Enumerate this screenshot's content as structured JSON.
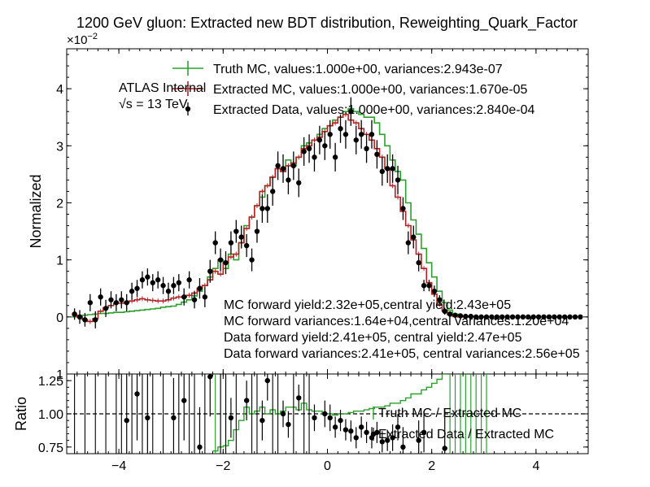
{
  "chart_data": [
    {
      "type": "line",
      "title": "1200 GeV gluon: Extracted new BDT distribution, Reweighting_Quark_Factor",
      "ylabel": "Normalized",
      "y_exponent_label": "×10",
      "y_exponent_power": "−2",
      "xlim": [
        -5,
        5
      ],
      "ylim": [
        -1,
        4.7
      ],
      "y_ticks": [
        -1,
        0,
        1,
        2,
        3,
        4
      ],
      "y_tick_labels": [
        "1",
        "0",
        "1",
        "2",
        "3",
        "4"
      ],
      "grid": false,
      "legend_placement": "top",
      "colors": {
        "truth": "#2ca02c",
        "extracted_mc": "#b22222",
        "data": "#000000"
      },
      "atlas_label": "ATLAS",
      "atlas_sublabel": "Internal",
      "energy_label": "√s =  13 TeV",
      "annotations": [
        "MC forward yield:2.32e+05,central yield:2.43e+05",
        "MC forward variances:1.64e+04,central variances:1.20e+04",
        "Data forward yield:2.41e+05, central yield:2.47e+05",
        "Data forward variances:2.41e+05, central variances:2.56e+05"
      ],
      "bin_edges": [
        -4.9,
        -4.8,
        -4.7,
        -4.6,
        -4.5,
        -4.4,
        -4.3,
        -4.2,
        -4.1,
        -4.0,
        -3.9,
        -3.8,
        -3.7,
        -3.6,
        -3.5,
        -3.4,
        -3.3,
        -3.2,
        -3.1,
        -3.0,
        -2.9,
        -2.8,
        -2.7,
        -2.6,
        -2.5,
        -2.4,
        -2.3,
        -2.2,
        -2.1,
        -2.0,
        -1.9,
        -1.8,
        -1.7,
        -1.6,
        -1.5,
        -1.4,
        -1.3,
        -1.2,
        -1.1,
        -1.0,
        -0.9,
        -0.8,
        -0.7,
        -0.6,
        -0.5,
        -0.4,
        -0.3,
        -0.2,
        -0.1,
        0.0,
        0.1,
        0.2,
        0.3,
        0.4,
        0.5,
        0.6,
        0.7,
        0.8,
        0.9,
        1.0,
        1.1,
        1.2,
        1.3,
        1.4,
        1.5,
        1.6,
        1.7,
        1.8,
        1.9,
        2.0,
        2.1,
        2.2,
        2.3,
        2.4,
        2.5,
        2.6,
        2.7,
        2.8,
        2.9,
        3.0,
        3.1
      ],
      "series": [
        {
          "name": "Truth MC, values:1.000e+00, variances:2.943e-07",
          "style": "step",
          "values": [
            0.0,
            0.02,
            0.03,
            0.04,
            0.05,
            0.06,
            0.06,
            0.07,
            0.08,
            0.08,
            0.09,
            0.1,
            0.11,
            0.12,
            0.13,
            0.14,
            0.15,
            0.17,
            0.18,
            0.19,
            0.22,
            0.26,
            0.3,
            0.37,
            0.45,
            0.55,
            0.7,
            0.85,
            1.0,
            0.85,
            1.1,
            1.0,
            1.3,
            1.6,
            1.75,
            1.95,
            2.1,
            2.3,
            2.45,
            2.6,
            2.6,
            2.75,
            2.65,
            2.8,
            3.0,
            3.05,
            3.1,
            3.2,
            3.3,
            3.35,
            3.45,
            3.5,
            3.6,
            3.65,
            3.6,
            3.55,
            3.5,
            3.5,
            3.4,
            3.2,
            3.0,
            2.75,
            2.55,
            2.4,
            2.0,
            1.7,
            1.45,
            1.2,
            0.95,
            0.7,
            0.45,
            0.25,
            0.12,
            0.05,
            0.02,
            0.01,
            0.0,
            0.0,
            0.0,
            0.0
          ]
        },
        {
          "name": "Extracted MC, values:1.000e+00, variances:1.670e-05",
          "style": "step",
          "values": [
            0.03,
            0.0,
            -0.05,
            -0.08,
            -0.03,
            0.1,
            0.16,
            0.2,
            0.24,
            0.24,
            0.26,
            0.28,
            0.3,
            0.32,
            0.3,
            0.29,
            0.28,
            0.28,
            0.3,
            0.33,
            0.35,
            0.35,
            0.38,
            0.42,
            0.5,
            0.55,
            0.65,
            0.8,
            0.75,
            0.95,
            1.05,
            1.1,
            1.3,
            1.55,
            1.75,
            1.95,
            2.2,
            2.3,
            2.45,
            2.6,
            2.55,
            2.65,
            2.7,
            2.8,
            2.95,
            3.0,
            3.1,
            3.15,
            3.25,
            3.35,
            3.4,
            3.5,
            3.55,
            3.45,
            3.4,
            3.3,
            3.2,
            3.1,
            2.95,
            2.8,
            2.6,
            2.3,
            2.1,
            1.85,
            1.6,
            1.35,
            1.1,
            0.85,
            0.6,
            0.4,
            0.22,
            0.1,
            0.04,
            0.01,
            0.0,
            0.0,
            0.0,
            0.0,
            0.0,
            0.0
          ]
        },
        {
          "name": "Extracted Data, values:1.000e+00, variances:2.840e-04",
          "style": "errorbar",
          "x": [
            -4.85,
            -4.75,
            -4.65,
            -4.55,
            -4.45,
            -4.35,
            -4.25,
            -4.15,
            -4.05,
            -3.95,
            -3.85,
            -3.75,
            -3.65,
            -3.55,
            -3.45,
            -3.35,
            -3.25,
            -3.15,
            -3.05,
            -2.95,
            -2.85,
            -2.75,
            -2.65,
            -2.55,
            -2.45,
            -2.35,
            -2.25,
            -2.15,
            -2.05,
            -1.95,
            -1.85,
            -1.75,
            -1.65,
            -1.55,
            -1.45,
            -1.35,
            -1.25,
            -1.15,
            -1.05,
            -0.95,
            -0.85,
            -0.75,
            -0.65,
            -0.55,
            -0.45,
            -0.35,
            -0.25,
            -0.15,
            -0.05,
            0.05,
            0.15,
            0.25,
            0.35,
            0.45,
            0.55,
            0.65,
            0.75,
            0.85,
            0.95,
            1.05,
            1.15,
            1.25,
            1.35,
            1.45,
            1.55,
            1.65,
            1.75,
            1.85,
            1.95,
            2.05,
            2.15,
            2.25,
            2.35,
            2.45,
            2.55,
            2.65,
            2.75,
            2.85,
            2.95,
            3.05,
            3.15,
            3.25,
            3.35,
            3.45,
            3.55,
            3.65,
            3.75,
            3.85,
            3.95,
            4.05,
            4.15,
            4.25,
            4.35,
            4.45,
            4.55,
            4.65,
            4.75,
            4.85
          ],
          "y": [
            0.05,
            0.0,
            -0.05,
            0.25,
            -0.05,
            0.35,
            0.15,
            0.3,
            0.25,
            0.3,
            0.25,
            0.45,
            0.5,
            0.65,
            0.7,
            0.6,
            0.65,
            0.55,
            0.45,
            0.55,
            0.6,
            0.35,
            0.65,
            0.3,
            0.5,
            0.35,
            0.8,
            1.3,
            1.0,
            0.95,
            1.3,
            1.5,
            1.4,
            1.25,
            1.0,
            1.5,
            1.9,
            1.9,
            2.2,
            2.65,
            2.6,
            2.4,
            2.65,
            2.35,
            2.9,
            2.95,
            2.8,
            3.1,
            3.0,
            3.2,
            2.8,
            3.3,
            3.2,
            3.6,
            3.1,
            3.2,
            2.95,
            3.2,
            2.85,
            2.55,
            2.6,
            2.6,
            2.4,
            1.9,
            1.3,
            1.4,
            0.95,
            0.55,
            0.55,
            0.45,
            0.3,
            0.1,
            0.05,
            0.03,
            0.02,
            0.01,
            0.01,
            0.0,
            0.0,
            0.0,
            0.0,
            0.0,
            0.0,
            0.0,
            0.0,
            0.0,
            0.0,
            0.0,
            0.0,
            0.0,
            0.0,
            0.0,
            0.0,
            0.0,
            0.0,
            0.0,
            0.0,
            0.0
          ],
          "yerr": [
            0.1,
            0.12,
            0.12,
            0.15,
            0.15,
            0.15,
            0.15,
            0.15,
            0.15,
            0.15,
            0.15,
            0.15,
            0.15,
            0.15,
            0.15,
            0.15,
            0.15,
            0.15,
            0.15,
            0.15,
            0.15,
            0.15,
            0.15,
            0.15,
            0.18,
            0.18,
            0.2,
            0.2,
            0.2,
            0.2,
            0.2,
            0.2,
            0.2,
            0.2,
            0.2,
            0.2,
            0.25,
            0.25,
            0.25,
            0.25,
            0.25,
            0.25,
            0.25,
            0.25,
            0.25,
            0.25,
            0.25,
            0.25,
            0.25,
            0.25,
            0.25,
            0.25,
            0.25,
            0.25,
            0.25,
            0.25,
            0.25,
            0.25,
            0.25,
            0.25,
            0.25,
            0.25,
            0.25,
            0.2,
            0.2,
            0.2,
            0.15,
            0.1,
            0.1,
            0.1,
            0.08,
            0.06,
            0.05,
            0.04,
            0.03,
            0.03,
            0.03,
            0.03,
            0.03,
            0.03,
            0.03,
            0.03,
            0.03,
            0.03,
            0.03,
            0.03,
            0.03,
            0.03,
            0.03,
            0.03,
            0.03,
            0.03,
            0.03,
            0.03,
            0.03,
            0.03,
            0.03,
            0.03
          ]
        }
      ]
    },
    {
      "type": "line",
      "xlabel": "",
      "ylabel": "Ratio",
      "xlim": [
        -5,
        5
      ],
      "ylim": [
        0.7,
        1.3
      ],
      "x_ticks": [
        -4,
        -2,
        0,
        2,
        4
      ],
      "x_tick_labels": [
        "−4",
        "−2",
        "0",
        "2",
        "4"
      ],
      "y_ticks": [
        0.75,
        1.0,
        1.25
      ],
      "y_tick_labels": [
        "0.75",
        "1.00",
        "1.25"
      ],
      "reference_line": 1.0,
      "legend_placement": "right",
      "series": [
        {
          "name": "Truth MC / Extracted MC",
          "style": "step",
          "bin_edges": [
            -2.2,
            -2.1,
            -2.0,
            -1.9,
            -1.8,
            -1.7,
            -1.6,
            -1.5,
            -1.4,
            -1.3,
            -1.2,
            -1.1,
            -1.0,
            -0.9,
            -0.8,
            -0.7,
            -0.6,
            -0.5,
            -0.4,
            -0.3,
            -0.2,
            -0.1,
            0.0,
            0.1,
            0.2,
            0.3,
            0.4,
            0.5,
            0.6,
            0.7,
            0.8,
            0.9,
            1.0,
            1.1,
            1.2,
            1.3,
            1.4,
            1.5,
            1.6,
            1.7,
            1.8,
            1.9,
            2.0,
            2.1,
            2.2,
            2.3
          ],
          "values": [
            0.72,
            0.75,
            0.76,
            0.8,
            0.88,
            0.95,
            1.05,
            1.0,
            1.02,
            1.05,
            1.0,
            1.03,
            1.0,
            1.02,
            1.05,
            1.05,
            1.03,
            1.08,
            1.03,
            1.02,
            1.02,
            1.0,
            1.0,
            0.99,
            1.0,
            1.0,
            1.01,
            1.02,
            1.02,
            1.03,
            1.04,
            1.05,
            1.05,
            1.06,
            1.08,
            1.08,
            1.1,
            1.12,
            1.15,
            1.15,
            1.18,
            1.2,
            1.23,
            1.26,
            1.3
          ]
        },
        {
          "name": "Extracted Data / Extracted MC",
          "style": "errorbar",
          "x": [
            -3.85,
            -3.65,
            -3.45,
            -2.95,
            -2.75,
            -2.45,
            -2.25,
            -1.85,
            -1.55,
            -1.25,
            -1.15,
            -0.85,
            -0.75,
            -0.55,
            -0.25,
            -0.05,
            0.05,
            0.15,
            0.25,
            0.35,
            0.45,
            0.55,
            0.65,
            0.75,
            0.85,
            0.95,
            1.05,
            1.15,
            1.25,
            1.35,
            1.45,
            1.75,
            1.85,
            2.25
          ],
          "y": [
            0.95,
            1.15,
            0.97,
            0.97,
            1.1,
            0.75,
            1.28,
            0.97,
            1.1,
            0.95,
            1.25,
            1.0,
            0.92,
            1.12,
            0.97,
            1.0,
            0.97,
            0.9,
            0.95,
            0.88,
            0.87,
            0.82,
            0.9,
            0.86,
            0.82,
            0.86,
            0.79,
            0.8,
            0.82,
            0.9,
            0.75,
            0.8,
            0.86,
            0.74
          ],
          "yerr": [
            0.35,
            0.35,
            0.35,
            0.3,
            0.3,
            0.3,
            0.3,
            0.15,
            0.15,
            0.15,
            0.15,
            0.1,
            0.1,
            0.1,
            0.1,
            0.1,
            0.1,
            0.08,
            0.08,
            0.08,
            0.08,
            0.08,
            0.08,
            0.08,
            0.08,
            0.08,
            0.08,
            0.08,
            0.1,
            0.1,
            0.15,
            0.15,
            0.15,
            0.3
          ]
        }
      ]
    }
  ]
}
